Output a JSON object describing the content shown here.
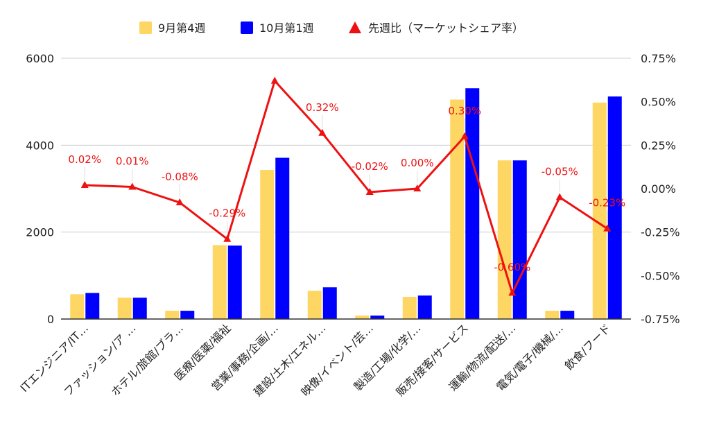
{
  "chart_data": {
    "type": "bar",
    "categories": [
      "ITエンジニア/IT…",
      "ファッション/ア …",
      "ホテル/旅館/ブラ…",
      "医療/医薬/福祉",
      "営業/事務/企画/…",
      "建設/土木/エネル…",
      "映像/イベント/芸…",
      "製造/工場/化学/…",
      "販売/接客/サービス",
      "運輸/物流/配送/…",
      "電気/電子/機械/…",
      "飲食/フード"
    ],
    "series": [
      {
        "name": "9月第4週",
        "color": "#fdd663",
        "values": [
          570,
          490,
          190,
          1700,
          3430,
          650,
          80,
          510,
          5050,
          3650,
          190,
          4980
        ]
      },
      {
        "name": "10月第1週",
        "color": "#0000ff",
        "values": [
          600,
          490,
          190,
          1690,
          3710,
          730,
          80,
          540,
          5310,
          3650,
          190,
          5120
        ]
      }
    ],
    "line_series": {
      "name": "先週比（マーケットシェア率）",
      "color": "#ee1111",
      "values": [
        0.02,
        0.01,
        -0.08,
        -0.29,
        0.62,
        0.32,
        -0.02,
        0.0,
        0.3,
        -0.6,
        -0.05,
        -0.23
      ],
      "labels": [
        "0.02%",
        "0.01%",
        "-0.08%",
        "-0.29%",
        "",
        "0.32%",
        "-0.02%",
        "0.00%",
        "0.30%",
        "-0.60%",
        "-0.05%",
        "-0.23%"
      ]
    },
    "y_left": {
      "min": 0,
      "max": 6000,
      "ticks": [
        "0",
        "2000",
        "4000",
        "6000"
      ]
    },
    "y_right": {
      "min": -0.75,
      "max": 0.75,
      "ticks": [
        "0.75%",
        "0.50%",
        "0.25%",
        "0.00%",
        "-0.25%",
        "-0.50%",
        "-0.75%"
      ]
    },
    "legend_position": "top-center",
    "grid": true
  }
}
